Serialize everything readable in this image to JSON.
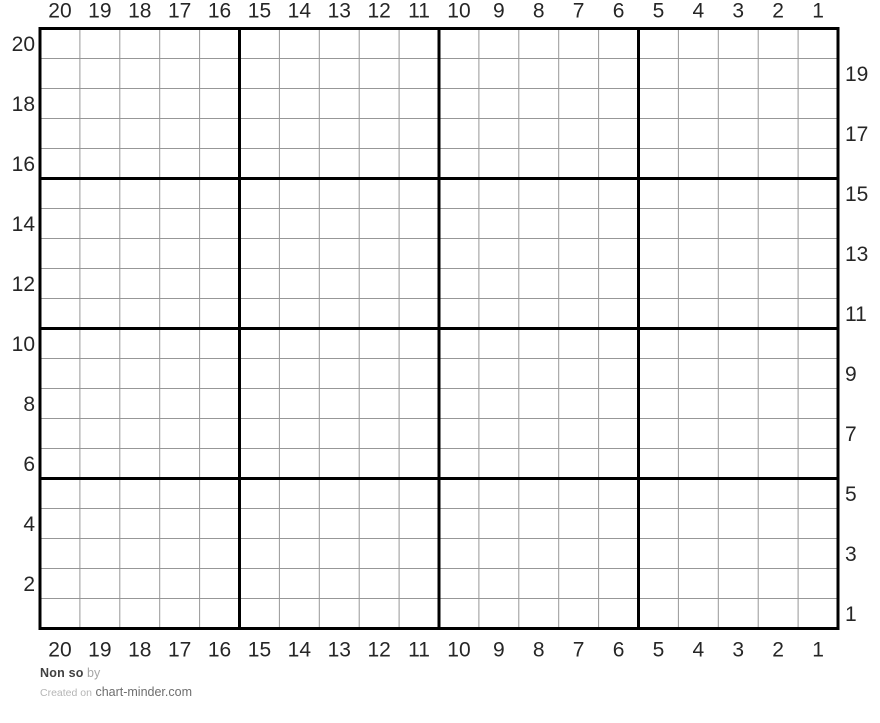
{
  "chart_data": {
    "type": "grid",
    "title": "Non so",
    "columns": 20,
    "rows": 20,
    "top_labels": [
      "20",
      "19",
      "18",
      "17",
      "16",
      "15",
      "14",
      "13",
      "12",
      "11",
      "10",
      "9",
      "8",
      "7",
      "6",
      "5",
      "4",
      "3",
      "2",
      "1"
    ],
    "bottom_labels": [
      "20",
      "19",
      "18",
      "17",
      "16",
      "15",
      "14",
      "13",
      "12",
      "11",
      "10",
      "9",
      "8",
      "7",
      "6",
      "5",
      "4",
      "3",
      "2",
      "1"
    ],
    "left_labels": [
      "20",
      "18",
      "16",
      "14",
      "12",
      "10",
      "8",
      "6",
      "4",
      "2"
    ],
    "right_labels": [
      "19",
      "17",
      "15",
      "13",
      "11",
      "9",
      "7",
      "5",
      "3",
      "1"
    ],
    "major_line_every": 5,
    "grid_on": true,
    "cells": "empty",
    "colors": {
      "minor_line": "#979797",
      "major_line": "#000000",
      "label": "#262626",
      "background": "#ffffff"
    }
  },
  "footer": {
    "title": "Non so",
    "by_label": "by",
    "credit_prefix": "Created on",
    "credit_site": "chart-minder.com"
  }
}
